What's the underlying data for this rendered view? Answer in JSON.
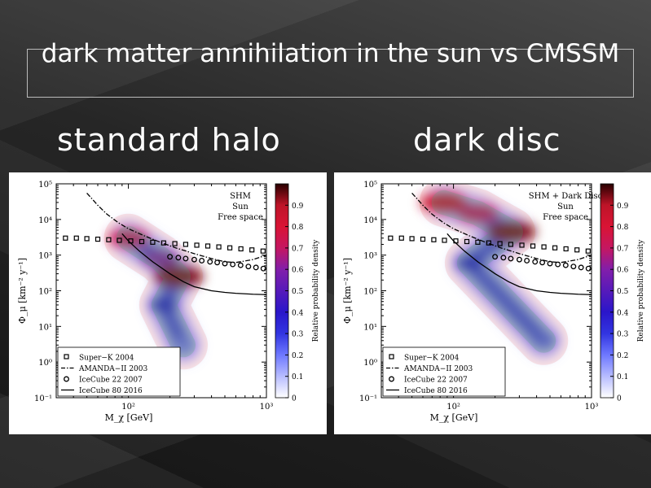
{
  "slide": {
    "title": "dark matter annihilation in the sun vs CMSSM",
    "subtitle_left": "standard halo",
    "subtitle_right": "dark disc"
  },
  "colorbar": {
    "label": "Relative probability density",
    "ticks": [
      "0",
      "0.1",
      "0.2",
      "0.3",
      "0.4",
      "0.5",
      "0.6",
      "0.7",
      "0.8",
      "0.9"
    ],
    "range": [
      0,
      1
    ]
  },
  "chart_data": [
    {
      "type": "scatter",
      "panel": "left",
      "annotation": [
        "SHM",
        "Sun",
        "Free space"
      ],
      "xlabel": "M_χ [GeV]",
      "ylabel": "Φ_μ [km⁻² y⁻¹]",
      "x_scale": "log",
      "y_scale": "log",
      "xlim": [
        30,
        1000
      ],
      "ylim": [
        0.1,
        100000
      ],
      "x_ticks": [
        "10²",
        "10³"
      ],
      "y_ticks": [
        "10⁻¹",
        "10⁰",
        "10¹",
        "10²",
        "10³",
        "10⁴",
        "10⁵"
      ],
      "legend": [
        {
          "label": "Super−K 2004",
          "marker": "square"
        },
        {
          "label": "AMANDA−II 2003",
          "marker": "dashdot"
        },
        {
          "label": "IceCube 22 2007",
          "marker": "circle"
        },
        {
          "label": "IceCube 80 2016",
          "marker": "solid"
        }
      ],
      "series": [
        {
          "x": [
            35,
            42,
            50,
            60,
            72,
            86,
            104,
            125,
            150,
            180,
            217,
            260,
            313,
            376,
            452,
            543,
            653,
            785,
            945
          ],
          "y": [
            3000,
            3000,
            2900,
            2800,
            2700,
            2600,
            2500,
            2400,
            2300,
            2200,
            2100,
            2000,
            1900,
            1800,
            1700,
            1600,
            1500,
            1400,
            1300
          ],
          "marker": "square"
        },
        {
          "x": [
            50,
            60,
            70,
            85,
            100,
            130,
            170,
            220,
            300,
            400,
            500,
            600,
            800,
            1000
          ],
          "y": [
            55000,
            25000,
            14000,
            8000,
            5500,
            3500,
            2300,
            1600,
            1100,
            800,
            650,
            620,
            750,
            1000
          ],
          "marker": "dashdot"
        },
        {
          "x": [
            200,
            230,
            260,
            300,
            340,
            390,
            440,
            500,
            570,
            650,
            740,
            840,
            950
          ],
          "y": [
            900,
            850,
            800,
            750,
            700,
            650,
            620,
            580,
            550,
            520,
            480,
            450,
            420
          ],
          "marker": "circle"
        },
        {
          "x": [
            90,
            100,
            120,
            150,
            200,
            250,
            300,
            400,
            500,
            600,
            800,
            1000
          ],
          "y": [
            4000,
            2500,
            1300,
            650,
            300,
            180,
            130,
            100,
            90,
            85,
            80,
            78
          ],
          "marker": "solid"
        }
      ],
      "density_peaks": [
        {
          "x": 100,
          "y": 3000,
          "value": 0.7
        },
        {
          "x": 170,
          "y": 800,
          "value": 0.6
        },
        {
          "x": 230,
          "y": 250,
          "value": 0.95
        },
        {
          "x": 180,
          "y": 40,
          "value": 0.35
        },
        {
          "x": 250,
          "y": 3,
          "value": 0.2
        }
      ]
    },
    {
      "type": "scatter",
      "panel": "right",
      "annotation": [
        "SHM + Dark Disc",
        "Sun",
        "Free space"
      ],
      "xlabel": "M_χ [GeV]",
      "ylabel": "Φ_μ [km⁻² y⁻¹]",
      "x_scale": "log",
      "y_scale": "log",
      "xlim": [
        30,
        1000
      ],
      "ylim": [
        0.1,
        100000
      ],
      "x_ticks": [
        "10²",
        "10³"
      ],
      "y_ticks": [
        "10⁻¹",
        "10⁰",
        "10¹",
        "10²",
        "10³",
        "10⁴",
        "10⁵"
      ],
      "legend": [
        {
          "label": "Super−K 2004",
          "marker": "square"
        },
        {
          "label": "AMANDA−II 2003",
          "marker": "dashdot"
        },
        {
          "label": "IceCube 22 2007",
          "marker": "circle"
        },
        {
          "label": "IceCube 80 2016",
          "marker": "solid"
        }
      ],
      "series": [
        {
          "x": [
            35,
            42,
            50,
            60,
            72,
            86,
            104,
            125,
            150,
            180,
            217,
            260,
            313,
            376,
            452,
            543,
            653,
            785,
            945
          ],
          "y": [
            3000,
            3000,
            2900,
            2800,
            2700,
            2600,
            2500,
            2400,
            2300,
            2200,
            2100,
            2000,
            1900,
            1800,
            1700,
            1600,
            1500,
            1400,
            1300
          ],
          "marker": "square"
        },
        {
          "x": [
            50,
            60,
            70,
            85,
            100,
            130,
            170,
            220,
            300,
            400,
            500,
            600,
            800,
            1000
          ],
          "y": [
            55000,
            25000,
            14000,
            8000,
            5500,
            3500,
            2300,
            1600,
            1100,
            800,
            650,
            620,
            750,
            1000
          ],
          "marker": "dashdot"
        },
        {
          "x": [
            200,
            230,
            260,
            300,
            340,
            390,
            440,
            500,
            570,
            650,
            740,
            840,
            950
          ],
          "y": [
            900,
            850,
            800,
            750,
            700,
            650,
            620,
            580,
            550,
            520,
            480,
            450,
            420
          ],
          "marker": "circle"
        },
        {
          "x": [
            90,
            100,
            120,
            150,
            200,
            250,
            300,
            400,
            500,
            600,
            800,
            1000
          ],
          "y": [
            4000,
            2500,
            1300,
            650,
            300,
            180,
            130,
            100,
            90,
            85,
            80,
            78
          ],
          "marker": "solid"
        }
      ],
      "density_peaks": [
        {
          "x": 85,
          "y": 30000,
          "value": 0.85
        },
        {
          "x": 150,
          "y": 15000,
          "value": 0.7
        },
        {
          "x": 260,
          "y": 4500,
          "value": 0.95
        },
        {
          "x": 130,
          "y": 600,
          "value": 0.35
        },
        {
          "x": 450,
          "y": 4,
          "value": 0.25
        }
      ]
    }
  ]
}
